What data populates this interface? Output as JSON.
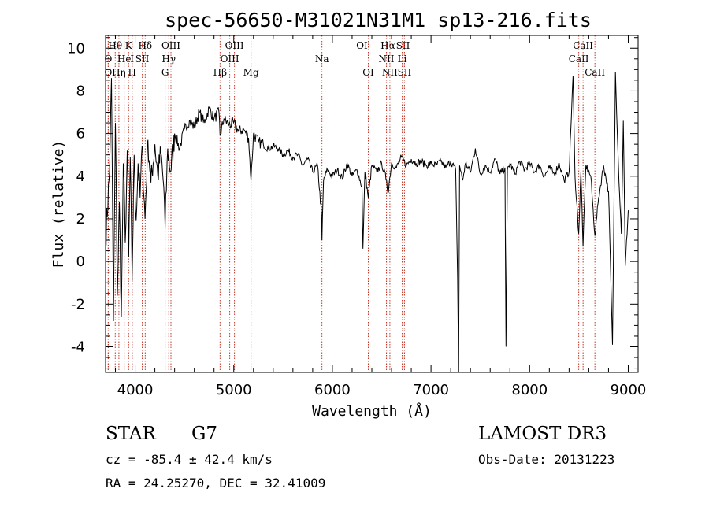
{
  "chart_data": {
    "type": "line",
    "title": "spec-56650-M31021N31M1_sp13-216.fits",
    "xlabel": "Wavelength (Å)",
    "ylabel": "Flux (relative)",
    "xlim": [
      3700,
      9100
    ],
    "ylim": [
      -5.2,
      10.6
    ],
    "xticks": [
      4000,
      5000,
      6000,
      7000,
      8000,
      9000
    ],
    "yticks": [
      -4,
      -2,
      0,
      2,
      4,
      6,
      8,
      10
    ],
    "line_color": "#000000",
    "marker_color": "#c0392b",
    "lines": [
      {
        "label": "O",
        "wave": 3727,
        "row": 2
      },
      {
        "label": "O",
        "wave": 3727,
        "row": 3
      },
      {
        "label": "Hθ",
        "wave": 3798,
        "row": 1
      },
      {
        "label": "Hη",
        "wave": 3835,
        "row": 3
      },
      {
        "label": "He",
        "wave": 3889,
        "row": 2
      },
      {
        "label": "K",
        "wave": 3934,
        "row": 1
      },
      {
        "label": "H",
        "wave": 3969,
        "row": 3
      },
      {
        "label": "I",
        "wave": 3970,
        "row": 2
      },
      {
        "label": "SII",
        "wave": 4072,
        "row": 2
      },
      {
        "label": "Hδ",
        "wave": 4102,
        "row": 1
      },
      {
        "label": "G",
        "wave": 4304,
        "row": 3
      },
      {
        "label": "Hγ",
        "wave": 4341,
        "row": 2
      },
      {
        "label": "OIII",
        "wave": 4363,
        "row": 1
      },
      {
        "label": "Hβ",
        "wave": 4861,
        "row": 3
      },
      {
        "label": "OIII",
        "wave": 4959,
        "row": 2
      },
      {
        "label": "OIII",
        "wave": 5007,
        "row": 1
      },
      {
        "label": "Mg",
        "wave": 5175,
        "row": 3
      },
      {
        "label": "Na",
        "wave": 5894,
        "row": 2
      },
      {
        "label": "OI",
        "wave": 6300,
        "row": 1
      },
      {
        "label": "OI",
        "wave": 6364,
        "row": 3
      },
      {
        "label": "NII",
        "wave": 6548,
        "row": 2
      },
      {
        "label": "Hα",
        "wave": 6563,
        "row": 1
      },
      {
        "label": "NII",
        "wave": 6583,
        "row": 3
      },
      {
        "label": "Li",
        "wave": 6708,
        "row": 2
      },
      {
        "label": "SII",
        "wave": 6716,
        "row": 1
      },
      {
        "label": "SII",
        "wave": 6731,
        "row": 3
      },
      {
        "label": "CaII",
        "wave": 8498,
        "row": 2
      },
      {
        "label": "CaII",
        "wave": 8542,
        "row": 1
      },
      {
        "label": "CaII",
        "wave": 8662,
        "row": 3
      }
    ],
    "spectrum_anchors": [
      [
        3700,
        1.0
      ],
      [
        3740,
        4.2
      ],
      [
        3760,
        8.6
      ],
      [
        3780,
        -2.8
      ],
      [
        3800,
        6.5
      ],
      [
        3820,
        -1.6
      ],
      [
        3840,
        2.8
      ],
      [
        3860,
        -2.6
      ],
      [
        3880,
        4.6
      ],
      [
        3900,
        0.9
      ],
      [
        3920,
        5.2
      ],
      [
        3935,
        0.2
      ],
      [
        3950,
        4.9
      ],
      [
        3969,
        -0.9
      ],
      [
        3990,
        5.0
      ],
      [
        4010,
        1.9
      ],
      [
        4030,
        4.6
      ],
      [
        4050,
        3.0
      ],
      [
        4070,
        5.4
      ],
      [
        4100,
        2.0
      ],
      [
        4130,
        5.7
      ],
      [
        4160,
        3.7
      ],
      [
        4200,
        5.5
      ],
      [
        4230,
        4.0
      ],
      [
        4260,
        5.1
      ],
      [
        4290,
        3.5
      ],
      [
        4304,
        1.6
      ],
      [
        4330,
        5.3
      ],
      [
        4360,
        4.2
      ],
      [
        4400,
        6.0
      ],
      [
        4450,
        5.3
      ],
      [
        4500,
        6.2
      ],
      [
        4550,
        6.6
      ],
      [
        4600,
        6.3
      ],
      [
        4650,
        7.0
      ],
      [
        4700,
        6.5
      ],
      [
        4750,
        7.2
      ],
      [
        4800,
        6.7
      ],
      [
        4850,
        7.0
      ],
      [
        4861,
        5.9
      ],
      [
        4900,
        6.7
      ],
      [
        4950,
        6.4
      ],
      [
        5000,
        6.5
      ],
      [
        5050,
        6.1
      ],
      [
        5100,
        6.2
      ],
      [
        5150,
        5.8
      ],
      [
        5175,
        3.8
      ],
      [
        5200,
        6.0
      ],
      [
        5250,
        5.6
      ],
      [
        5300,
        5.5
      ],
      [
        5350,
        5.3
      ],
      [
        5400,
        5.4
      ],
      [
        5450,
        5.3
      ],
      [
        5500,
        5.0
      ],
      [
        5550,
        5.2
      ],
      [
        5600,
        4.9
      ],
      [
        5650,
        5.0
      ],
      [
        5700,
        4.5
      ],
      [
        5750,
        4.8
      ],
      [
        5800,
        4.2
      ],
      [
        5850,
        4.5
      ],
      [
        5890,
        2.2
      ],
      [
        5894,
        1.0
      ],
      [
        5910,
        3.8
      ],
      [
        5950,
        4.3
      ],
      [
        6000,
        4.0
      ],
      [
        6050,
        4.3
      ],
      [
        6100,
        3.9
      ],
      [
        6150,
        4.6
      ],
      [
        6200,
        4.0
      ],
      [
        6250,
        4.3
      ],
      [
        6300,
        3.5
      ],
      [
        6310,
        0.6
      ],
      [
        6330,
        4.2
      ],
      [
        6364,
        3.0
      ],
      [
        6400,
        4.5
      ],
      [
        6450,
        4.2
      ],
      [
        6500,
        4.6
      ],
      [
        6550,
        3.8
      ],
      [
        6563,
        3.2
      ],
      [
        6600,
        4.6
      ],
      [
        6650,
        4.4
      ],
      [
        6700,
        4.9
      ],
      [
        6750,
        4.5
      ],
      [
        6800,
        4.8
      ],
      [
        6850,
        4.6
      ],
      [
        6900,
        4.7
      ],
      [
        6950,
        4.5
      ],
      [
        7000,
        4.6
      ],
      [
        7050,
        4.5
      ],
      [
        7100,
        4.7
      ],
      [
        7150,
        4.4
      ],
      [
        7200,
        4.7
      ],
      [
        7250,
        4.3
      ],
      [
        7270,
        -0.8
      ],
      [
        7280,
        -5.2
      ],
      [
        7290,
        4.5
      ],
      [
        7320,
        3.8
      ],
      [
        7350,
        4.6
      ],
      [
        7400,
        4.2
      ],
      [
        7450,
        5.3
      ],
      [
        7500,
        4.1
      ],
      [
        7550,
        4.5
      ],
      [
        7600,
        4.2
      ],
      [
        7650,
        4.8
      ],
      [
        7700,
        4.1
      ],
      [
        7750,
        4.4
      ],
      [
        7760,
        -4.0
      ],
      [
        7775,
        4.3
      ],
      [
        7800,
        4.6
      ],
      [
        7850,
        4.1
      ],
      [
        7900,
        4.7
      ],
      [
        7950,
        4.3
      ],
      [
        8000,
        4.6
      ],
      [
        8050,
        4.2
      ],
      [
        8100,
        4.5
      ],
      [
        8150,
        4.0
      ],
      [
        8200,
        4.4
      ],
      [
        8250,
        4.1
      ],
      [
        8300,
        4.6
      ],
      [
        8350,
        3.8
      ],
      [
        8400,
        4.2
      ],
      [
        8440,
        8.7
      ],
      [
        8460,
        4.0
      ],
      [
        8498,
        1.3
      ],
      [
        8520,
        4.2
      ],
      [
        8542,
        0.7
      ],
      [
        8570,
        4.5
      ],
      [
        8620,
        4.0
      ],
      [
        8662,
        1.2
      ],
      [
        8700,
        3.0
      ],
      [
        8750,
        4.5
      ],
      [
        8800,
        3.3
      ],
      [
        8840,
        -3.9
      ],
      [
        8870,
        8.9
      ],
      [
        8900,
        4.5
      ],
      [
        8930,
        1.3
      ],
      [
        8950,
        6.6
      ],
      [
        8970,
        -0.2
      ],
      [
        9000,
        2.4
      ]
    ]
  },
  "info": {
    "object_class": "STAR",
    "subclass": "G7",
    "survey": "LAMOST DR3",
    "redshift": "cz = -85.4 ± 42.4 km/s",
    "obs_date": "Obs-Date: 20131223",
    "coords": "RA =  24.25270, DEC =  32.41009"
  }
}
